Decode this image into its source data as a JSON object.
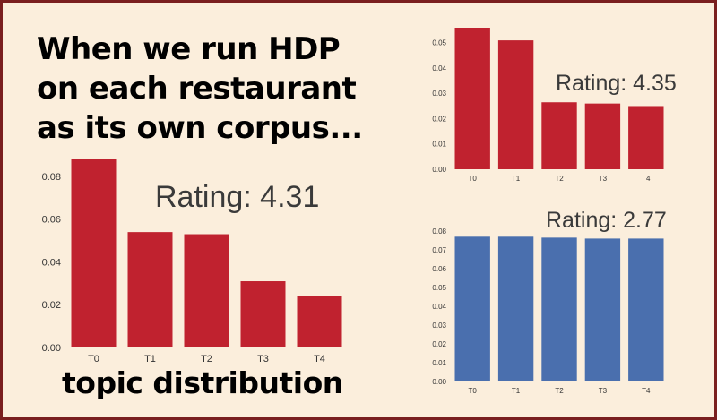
{
  "headline": [
    "When we run HDP",
    "on each restaurant",
    "as its own corpus..."
  ],
  "footer": "topic distribution",
  "colors": {
    "red": "#c0222f",
    "blue": "#4a6fae",
    "background": "#fbeedc",
    "border": "#7a1f1f"
  },
  "chart_data": [
    {
      "type": "bar",
      "annotation": "Rating: 4.31",
      "categories": [
        "T0",
        "T1",
        "T2",
        "T3",
        "T4"
      ],
      "values": [
        0.088,
        0.054,
        0.053,
        0.031,
        0.024
      ],
      "ylim": [
        0,
        0.088
      ],
      "yticks": [
        0.0,
        0.02,
        0.04,
        0.06,
        0.08
      ],
      "ytick_labels": [
        "0.00",
        "0.02",
        "0.04",
        "0.06",
        "0.08"
      ],
      "color": "red",
      "grid": false
    },
    {
      "type": "bar",
      "annotation": "Rating: 4.35",
      "categories": [
        "T0",
        "T1",
        "T2",
        "T3",
        "T4"
      ],
      "values": [
        0.056,
        0.051,
        0.0265,
        0.026,
        0.025
      ],
      "ylim": [
        0,
        0.056
      ],
      "yticks": [
        0.0,
        0.01,
        0.02,
        0.03,
        0.04,
        0.05
      ],
      "ytick_labels": [
        "0.00",
        "0.01",
        "0.02",
        "0.03",
        "0.04",
        "0.05"
      ],
      "color": "red",
      "grid": false
    },
    {
      "type": "bar",
      "annotation": "Rating: 2.77",
      "categories": [
        "T0",
        "T1",
        "T2",
        "T3",
        "T4"
      ],
      "values": [
        0.077,
        0.077,
        0.0765,
        0.076,
        0.076
      ],
      "ylim": [
        0,
        0.08
      ],
      "yticks": [
        0.0,
        0.01,
        0.02,
        0.03,
        0.04,
        0.05,
        0.06,
        0.07,
        0.08
      ],
      "ytick_labels": [
        "0.00",
        "0.01",
        "0.02",
        "0.03",
        "0.04",
        "0.05",
        "0.06",
        "0.07",
        "0.08"
      ],
      "color": "blue",
      "grid": false
    }
  ]
}
